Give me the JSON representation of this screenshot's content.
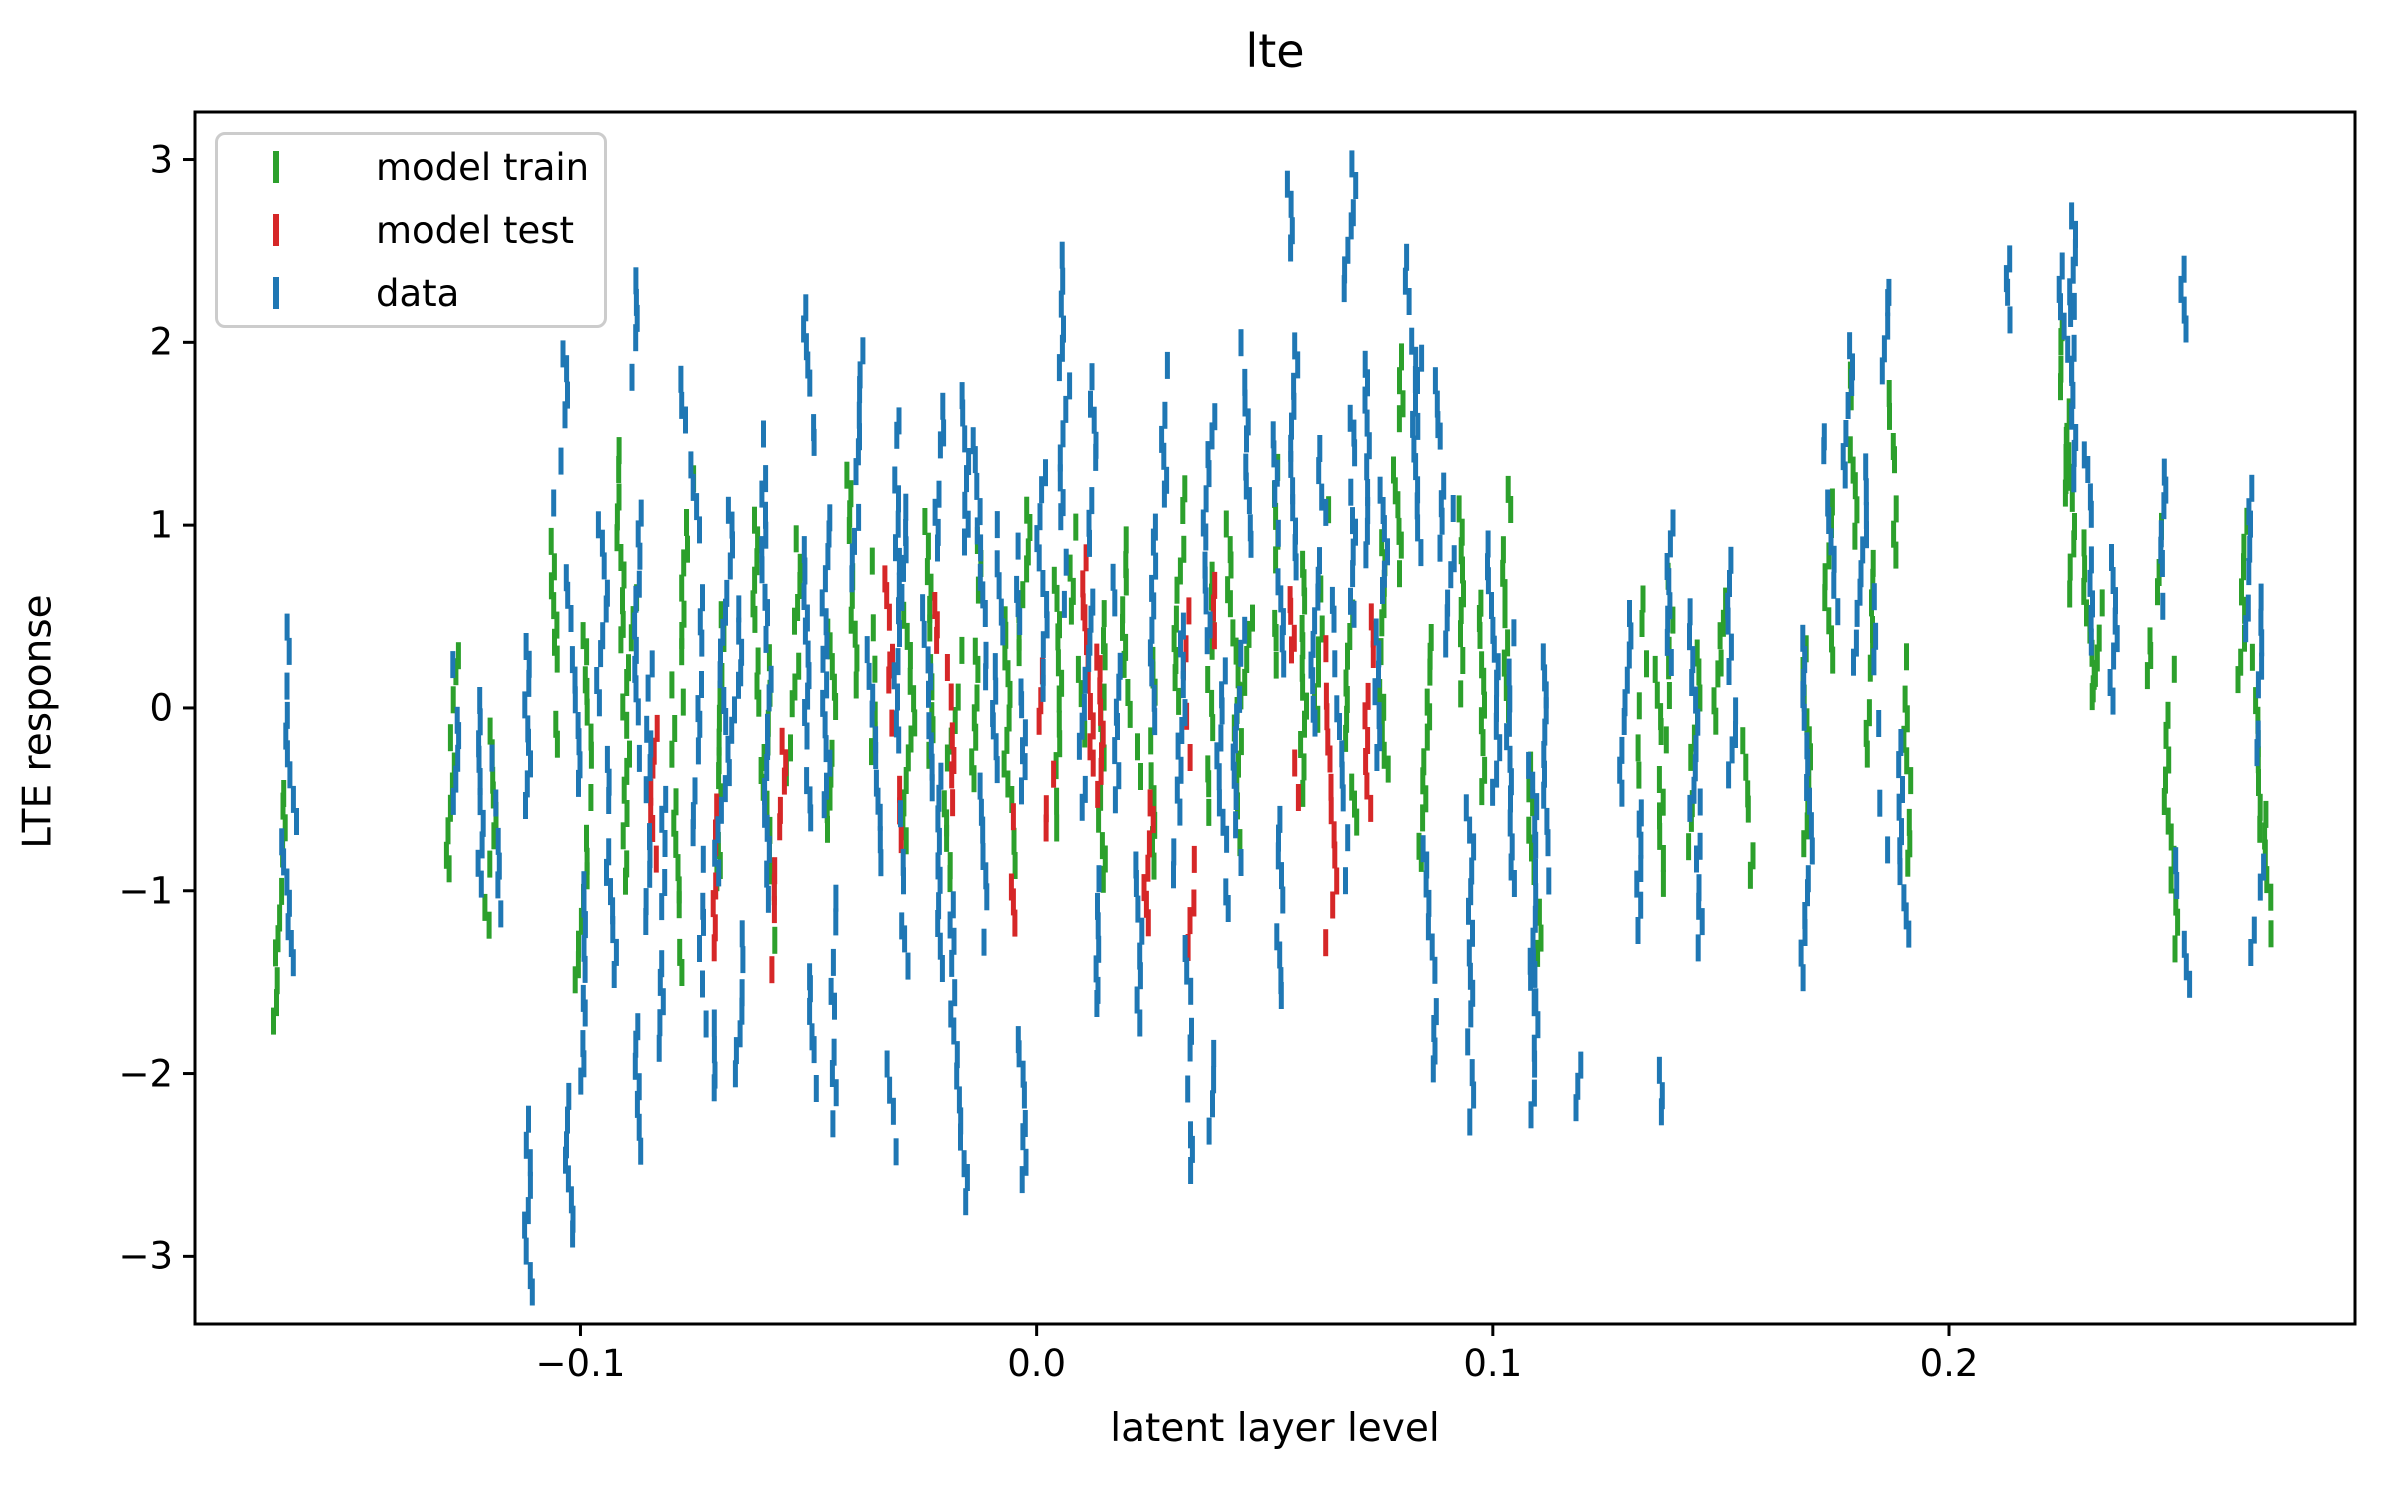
{
  "chart_data": {
    "type": "scatter",
    "title": "lte",
    "xlabel": "latent layer level",
    "ylabel": "LTE response",
    "marker": "|",
    "grid": false,
    "legend_position": "upper left",
    "xlim": [
      -0.1845,
      0.289
    ],
    "ylim": [
      -3.37,
      3.26
    ],
    "xticks": [
      {
        "value": -0.1,
        "label": "−0.1"
      },
      {
        "value": 0.0,
        "label": "0.0"
      },
      {
        "value": 0.1,
        "label": "0.1"
      },
      {
        "value": 0.2,
        "label": "0.2"
      }
    ],
    "yticks": [
      {
        "value": 3,
        "label": "3"
      },
      {
        "value": 2,
        "label": "2"
      },
      {
        "value": 1,
        "label": "1"
      },
      {
        "value": 0,
        "label": "0"
      },
      {
        "value": -1,
        "label": "−1"
      },
      {
        "value": -2,
        "label": "−2"
      },
      {
        "value": -3,
        "label": "−3"
      }
    ],
    "series": [
      {
        "name": "model train",
        "color": "#2ca02c",
        "clusters": [
          [
            -0.166,
            -0.45,
            -1.7
          ],
          [
            -0.1255,
            0.3,
            -0.9
          ],
          [
            -0.119,
            -0.15,
            -1.3
          ],
          [
            -0.106,
            0.9,
            -0.2
          ],
          [
            -0.1,
            0.4,
            -1.5
          ],
          [
            -0.092,
            1.4,
            0.35
          ],
          [
            -0.0875,
            0.6,
            -0.95
          ],
          [
            -0.0805,
            0.1,
            -1.45
          ],
          [
            -0.0745,
            1.25,
            0.05
          ],
          [
            -0.068,
            0.5,
            -0.95
          ],
          [
            -0.063,
            1.05,
            -0.35
          ],
          [
            -0.0585,
            0.3,
            -1.25
          ],
          [
            -0.053,
            0.9,
            -0.45
          ],
          [
            -0.047,
            0.55,
            -0.8
          ],
          [
            -0.0415,
            1.3,
            0.15
          ],
          [
            -0.036,
            0.8,
            -0.6
          ],
          [
            -0.0295,
            0.6,
            -0.75
          ],
          [
            -0.024,
            1.0,
            -0.25
          ],
          [
            -0.018,
            0.4,
            -0.95
          ],
          [
            -0.0125,
            0.9,
            -0.4
          ],
          [
            -0.007,
            0.5,
            -0.85
          ],
          [
            -0.001,
            1.1,
            -0.05
          ],
          [
            0.004,
            0.7,
            -0.65
          ],
          [
            0.0095,
            1.0,
            -0.15
          ],
          [
            0.015,
            0.5,
            -0.95
          ],
          [
            0.0205,
            0.9,
            -0.35
          ],
          [
            0.026,
            0.4,
            -0.85
          ],
          [
            0.0315,
            1.2,
            0.05
          ],
          [
            0.037,
            0.7,
            -0.55
          ],
          [
            0.0425,
            1.0,
            -0.25
          ],
          [
            0.048,
            0.5,
            -0.75
          ],
          [
            0.0535,
            1.3,
            0.25
          ],
          [
            0.059,
            0.8,
            -0.45
          ],
          [
            0.0645,
            1.1,
            -0.05
          ],
          [
            0.07,
            0.5,
            -0.65
          ],
          [
            0.0755,
            0.9,
            -0.35
          ],
          [
            0.081,
            1.9,
            0.75
          ],
          [
            0.0865,
            0.4,
            -0.85
          ],
          [
            0.092,
            1.1,
            0.05
          ],
          [
            0.098,
            0.6,
            -0.55
          ],
          [
            0.1035,
            1.2,
            -0.1
          ],
          [
            0.108,
            -0.3,
            -1.35
          ],
          [
            0.131,
            0.7,
            -0.35
          ],
          [
            0.1345,
            0.2,
            -0.95
          ],
          [
            0.139,
            0.7,
            -0.15
          ],
          [
            0.1455,
            0.3,
            -0.85
          ],
          [
            0.151,
            0.7,
            -0.05
          ],
          [
            0.155,
            -0.2,
            -1.05
          ],
          [
            0.169,
            0.3,
            -0.75
          ],
          [
            0.174,
            1.1,
            0.25
          ],
          [
            0.179,
            1.8,
            0.95
          ],
          [
            0.1835,
            0.9,
            -0.25
          ],
          [
            0.188,
            1.7,
            0.85
          ],
          [
            0.191,
            0.3,
            -0.85
          ],
          [
            0.224,
            2.1,
            1.15
          ],
          [
            0.2265,
            1.6,
            0.65
          ],
          [
            0.2295,
            1.1,
            0.1
          ],
          [
            0.2325,
            0.6,
            0.05
          ],
          [
            0.246,
            1.0,
            0.15
          ],
          [
            0.2485,
            0.2,
            -0.95
          ],
          [
            0.2495,
            -1.05,
            -1.3
          ],
          [
            0.265,
            1.0,
            0.15
          ],
          [
            0.2675,
            0.4,
            -0.65
          ],
          [
            0.2695,
            -0.6,
            -1.25
          ]
        ]
      },
      {
        "name": "model test",
        "color": "#d62728",
        "clusters": [
          [
            -0.082,
            -0.1,
            -0.8
          ],
          [
            -0.071,
            -0.55,
            -1.3
          ],
          [
            -0.055,
            -0.2,
            -1.45
          ],
          [
            -0.0335,
            0.7,
            0.25
          ],
          [
            -0.032,
            0.25,
            -0.7
          ],
          [
            -0.0235,
            0.7,
            0.35
          ],
          [
            -0.021,
            0.2,
            -0.5
          ],
          [
            -0.0046,
            -0.6,
            -1.2
          ],
          [
            0.0004,
            0.18,
            -0.1
          ],
          [
            0.003,
            -0.22,
            -0.8
          ],
          [
            0.011,
            0.8,
            -0.3
          ],
          [
            0.013,
            0.3,
            -0.45
          ],
          [
            0.023,
            -0.5,
            -1.2
          ],
          [
            0.033,
            0.55,
            -0.25
          ],
          [
            0.036,
            -0.85,
            -1.3
          ],
          [
            0.04,
            0.65,
            0.4
          ],
          [
            0.0565,
            0.62,
            0.3
          ],
          [
            0.056,
            -0.3,
            -0.47
          ],
          [
            0.064,
            0.32,
            -0.42
          ],
          [
            0.0645,
            -0.47,
            -1.3
          ],
          [
            0.072,
            0.5,
            0.15
          ],
          [
            0.0725,
            0.05,
            -0.55
          ]
        ]
      },
      {
        "name": "data",
        "color": "#1f77b4",
        "clusters": [
          [
            -0.165,
            0.45,
            -0.6
          ],
          [
            -0.164,
            -0.75,
            -1.4
          ],
          [
            -0.128,
            0.25,
            -0.5
          ],
          [
            -0.123,
            0.05,
            -0.95
          ],
          [
            -0.12,
            -0.3,
            -1.1
          ],
          [
            -0.1115,
            0.35,
            -0.55
          ],
          [
            -0.111,
            -2.25,
            -3.2
          ],
          [
            -0.104,
            1.95,
            1.1
          ],
          [
            -0.103,
            0.7,
            -0.4
          ],
          [
            -0.102,
            -2.15,
            -2.9
          ],
          [
            -0.099,
            -0.85,
            -2.05
          ],
          [
            -0.095,
            1.0,
            0.05
          ],
          [
            -0.0935,
            -0.3,
            -1.45
          ],
          [
            -0.088,
            2.45,
            1.8
          ],
          [
            -0.0875,
            -1.75,
            -2.4
          ],
          [
            -0.0865,
            1.05,
            -0.25
          ],
          [
            -0.0845,
            0.25,
            -1.15
          ],
          [
            -0.082,
            -0.5,
            -1.85
          ],
          [
            -0.0765,
            1.8,
            0.85
          ],
          [
            -0.075,
            0.6,
            -0.7
          ],
          [
            -0.0735,
            -0.85,
            -1.75
          ],
          [
            -0.07,
            -1.75,
            -2.1
          ],
          [
            -0.069,
            1.1,
            -0.05
          ],
          [
            -0.0655,
            0.55,
            -0.9
          ],
          [
            -0.0645,
            -1.25,
            -2.0
          ],
          [
            -0.059,
            1.5,
            0.4
          ],
          [
            -0.0575,
            0.15,
            -1.5
          ],
          [
            -0.052,
            2.2,
            1.45
          ],
          [
            -0.051,
            0.85,
            -0.6
          ],
          [
            -0.0505,
            -1.45,
            -2.1
          ],
          [
            -0.0445,
            1.05,
            -0.55
          ],
          [
            -0.043,
            -1.05,
            -2.25
          ],
          [
            -0.038,
            1.95,
            0.7
          ],
          [
            -0.0365,
            0.3,
            -0.85
          ],
          [
            -0.0327,
            -1.95,
            -2.45
          ],
          [
            -0.031,
            1.7,
            0.55
          ],
          [
            -0.03,
            1.1,
            -0.2
          ],
          [
            -0.0295,
            -0.6,
            -1.4
          ],
          [
            -0.025,
            0.65,
            -0.55
          ],
          [
            -0.021,
            1.75,
            0.85
          ],
          [
            -0.0195,
            -0.4,
            -1.4
          ],
          [
            -0.0177,
            1.72,
            0.9
          ],
          [
            -0.017,
            -0.95,
            -2.7
          ],
          [
            -0.013,
            1.45,
            0.15
          ],
          [
            -0.012,
            -0.45,
            -1.3
          ],
          [
            -0.008,
            1.0,
            -0.35
          ],
          [
            -0.004,
            -1.8,
            -2.6
          ],
          [
            -0.003,
            0.9,
            -0.45
          ],
          [
            0.003,
            1.3,
            0.1
          ],
          [
            0.007,
            2.45,
            1.85
          ],
          [
            0.008,
            1.75,
            0.55
          ],
          [
            0.0123,
            1.8,
            0.9
          ],
          [
            0.013,
            0.6,
            -0.55
          ],
          [
            0.014,
            -0.95,
            -1.75
          ],
          [
            0.018,
            0.7,
            -0.6
          ],
          [
            0.021,
            -0.75,
            -1.7
          ],
          [
            0.026,
            1.0,
            -0.05
          ],
          [
            0.028,
            1.9,
            1.15
          ],
          [
            0.032,
            0.45,
            -0.9
          ],
          [
            0.033,
            -1.3,
            -2.55
          ],
          [
            0.038,
            1.6,
            0.35
          ],
          [
            0.039,
            -1.9,
            -2.3
          ],
          [
            0.04,
            0.2,
            -1.1
          ],
          [
            0.045,
            2.0,
            0.9
          ],
          [
            0.047,
            0.4,
            -0.85
          ],
          [
            0.052,
            1.5,
            0.15
          ],
          [
            0.053,
            -0.6,
            -1.6
          ],
          [
            0.055,
            2.85,
            2.5
          ],
          [
            0.057,
            2.0,
            0.75
          ],
          [
            0.062,
            1.4,
            -0.1
          ],
          [
            0.065,
            0.6,
            -0.95
          ],
          [
            0.068,
            1.6,
            0.5
          ],
          [
            0.0705,
            2.95,
            2.3
          ],
          [
            0.071,
            1.9,
            0.7
          ],
          [
            0.075,
            1.2,
            -0.25
          ],
          [
            0.082,
            2.45,
            1.55
          ],
          [
            0.084,
            1.9,
            0.85
          ],
          [
            0.085,
            -0.75,
            -2.1
          ],
          [
            0.088,
            1.8,
            0.9
          ],
          [
            0.092,
            1.3,
            0.25
          ],
          [
            0.094,
            -0.55,
            -1.8
          ],
          [
            0.096,
            -1.85,
            -2.25
          ],
          [
            0.1,
            0.9,
            -0.45
          ],
          [
            0.104,
            0.4,
            -1.1
          ],
          [
            0.107,
            -0.3,
            -1.6
          ],
          [
            0.1085,
            -1.15,
            -2.2
          ],
          [
            0.111,
            0.3,
            -0.95
          ],
          [
            0.118,
            -1.95,
            -2.2
          ],
          [
            0.13,
            0.5,
            -0.45
          ],
          [
            0.1335,
            -0.55,
            -1.3
          ],
          [
            0.137,
            -2.0,
            -2.2
          ],
          [
            0.14,
            1.0,
            0.25
          ],
          [
            0.143,
            0.5,
            -0.55
          ],
          [
            0.147,
            -0.4,
            -1.3
          ],
          [
            0.152,
            0.8,
            -0.35
          ],
          [
            0.168,
            0.4,
            -0.65
          ],
          [
            0.17,
            -0.8,
            -1.45
          ],
          [
            0.173,
            1.5,
            0.55
          ],
          [
            0.178,
            2.0,
            1.15
          ],
          [
            0.181,
            1.3,
            0.15
          ],
          [
            0.184,
            0.6,
            -0.75
          ],
          [
            0.187,
            2.3,
            1.75
          ],
          [
            0.19,
            -0.2,
            -1.25
          ],
          [
            0.214,
            2.45,
            2.15
          ],
          [
            0.225,
            2.4,
            1.85
          ],
          [
            0.227,
            2.7,
            2.15
          ],
          [
            0.229,
            2.2,
            1.25
          ],
          [
            0.231,
            1.4,
            0.35
          ],
          [
            0.234,
            0.8,
            0.05
          ],
          [
            0.2475,
            1.3,
            0.55
          ],
          [
            0.249,
            -0.75,
            -1.5
          ],
          [
            0.252,
            2.4,
            2.1
          ],
          [
            0.266,
            1.2,
            0.45
          ],
          [
            0.268,
            0.6,
            -0.25
          ],
          [
            0.27,
            -0.85,
            -1.35
          ]
        ]
      }
    ]
  }
}
